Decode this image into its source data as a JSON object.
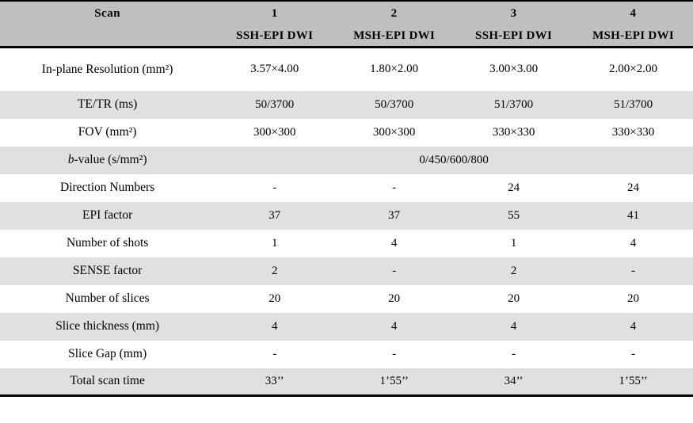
{
  "table": {
    "colors": {
      "header_bg": "#bfbfbf",
      "row_shaded_bg": "#e0e0e0",
      "border": "#000000"
    },
    "header": {
      "scan_label": "Scan",
      "columns": [
        {
          "number": "1",
          "sequence": "SSH-EPI DWI"
        },
        {
          "number": "2",
          "sequence": "MSH-EPI DWI"
        },
        {
          "number": "3",
          "sequence": "SSH-EPI DWI"
        },
        {
          "number": "4",
          "sequence": "MSH-EPI DWI"
        }
      ]
    },
    "rows": [
      {
        "label": "In-plane Resolution (mm²)",
        "values": [
          "3.57×4.00",
          "1.80×2.00",
          "3.00×3.00",
          "2.00×2.00"
        ],
        "shaded": false,
        "tall": true
      },
      {
        "label": "TE/TR (ms)",
        "values": [
          "50/3700",
          "50/3700",
          "51/3700",
          "51/3700"
        ],
        "shaded": true
      },
      {
        "label": "FOV (mm²)",
        "values": [
          "300×300",
          "300×300",
          "330×330",
          "330×330"
        ],
        "shaded": false
      },
      {
        "label_italic": "b",
        "label": "-value (s/mm²)",
        "span_value": "0/450/600/800",
        "shaded": true
      },
      {
        "label": "Direction Numbers",
        "values": [
          "-",
          "-",
          "24",
          "24"
        ],
        "shaded": false
      },
      {
        "label": "EPI factor",
        "values": [
          "37",
          "37",
          "55",
          "41"
        ],
        "shaded": true
      },
      {
        "label": "Number of shots",
        "values": [
          "1",
          "4",
          "1",
          "4"
        ],
        "shaded": false
      },
      {
        "label": "SENSE factor",
        "values": [
          "2",
          "-",
          "2",
          "-"
        ],
        "shaded": true
      },
      {
        "label": "Number of slices",
        "values": [
          "20",
          "20",
          "20",
          "20"
        ],
        "shaded": false
      },
      {
        "label": "Slice thickness (mm)",
        "values": [
          "4",
          "4",
          "4",
          "4"
        ],
        "shaded": true
      },
      {
        "label": "Slice Gap (mm)",
        "values": [
          "-",
          "-",
          "-",
          "-"
        ],
        "shaded": false
      },
      {
        "label": "Total scan time",
        "values": [
          "33’’",
          "1’55’’",
          "34’’",
          "1’55’’"
        ],
        "shaded": true
      }
    ]
  }
}
